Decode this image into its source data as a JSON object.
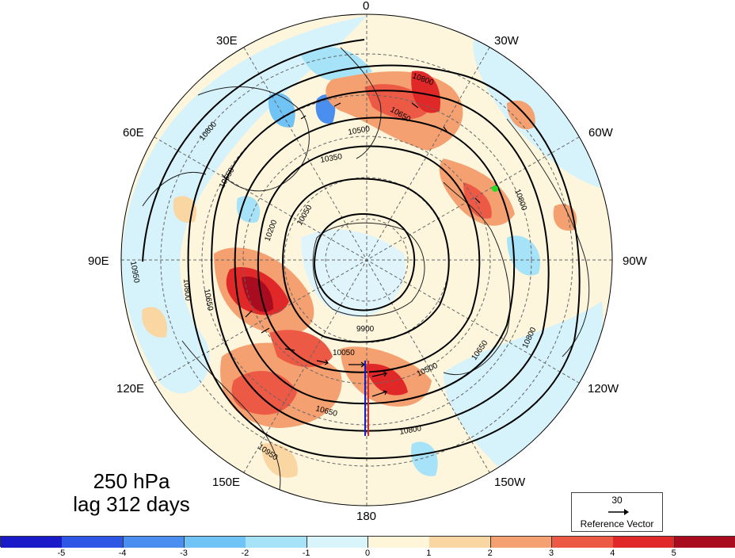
{
  "map": {
    "longitude_labels": [
      {
        "text": "0",
        "name": "lon-label-0"
      },
      {
        "text": "30W",
        "name": "lon-label-30w"
      },
      {
        "text": "60W",
        "name": "lon-label-60w"
      },
      {
        "text": "90W",
        "name": "lon-label-90w"
      },
      {
        "text": "120W",
        "name": "lon-label-120w"
      },
      {
        "text": "150W",
        "name": "lon-label-150w"
      },
      {
        "text": "180",
        "name": "lon-label-180"
      },
      {
        "text": "150E",
        "name": "lon-label-150e"
      },
      {
        "text": "120E",
        "name": "lon-label-120e"
      },
      {
        "text": "90E",
        "name": "lon-label-90e"
      },
      {
        "text": "60E",
        "name": "lon-label-60e"
      },
      {
        "text": "30E",
        "name": "lon-label-30e"
      }
    ],
    "contour_labels": [
      "10800",
      "10650",
      "10500",
      "10350",
      "10200",
      "10050",
      "9900",
      "10950"
    ],
    "marker_color": "#22dd22"
  },
  "title": {
    "level": "250 hPa",
    "lag": "lag 312 days"
  },
  "reference_vector": {
    "magnitude": "30",
    "label": "Reference Vector"
  },
  "colorbar": {
    "ticks": [
      "-5",
      "-4",
      "-3",
      "-2",
      "-1",
      "0",
      "1",
      "2",
      "3",
      "4",
      "5"
    ],
    "colors": [
      "#1a1ac8",
      "#2d55e6",
      "#4a8ef0",
      "#6fc3f5",
      "#a6e2f8",
      "#d9f4fb",
      "#fff6da",
      "#fad6a2",
      "#f5a070",
      "#ec5a46",
      "#e02828",
      "#a80c1e"
    ]
  }
}
